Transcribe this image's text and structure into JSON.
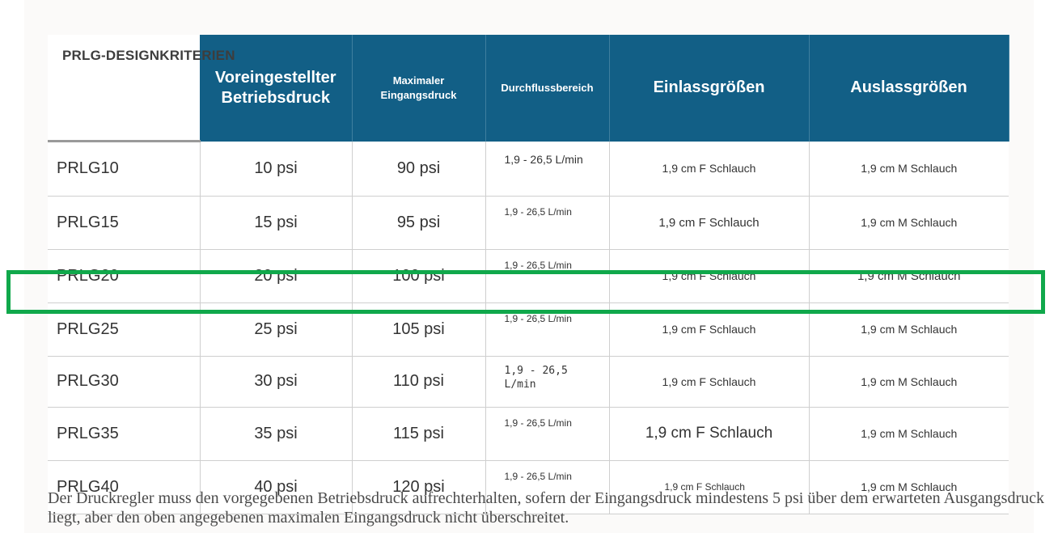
{
  "table": {
    "corner_label": "PRLG-DESIGNKRITERIEN",
    "headers": [
      {
        "text": "Voreingestellter Betriebsdruck",
        "line1": "Voreingestellter",
        "line2": "Betriebsdruck"
      },
      {
        "text": "Maximaler Eingangsdruck",
        "line1": "Maximaler",
        "line2": "Eingangsdruck"
      },
      {
        "text": "Durchflussbereich"
      },
      {
        "text": "Einlassgrößen"
      },
      {
        "text": "Auslassgrößen"
      }
    ],
    "rows": [
      {
        "model": "PRLG10",
        "preset": "10 psi",
        "max_inlet": "90 psi",
        "flow": "1,9 - 26,5 L/min",
        "inlet": "1,9 cm F Schlauch",
        "outlet": "1,9 cm M Schlauch"
      },
      {
        "model": "PRLG15",
        "preset": "15 psi",
        "max_inlet": "95 psi",
        "flow": "1,9 - 26,5 L/min",
        "inlet": "1,9 cm F Schlauch",
        "outlet": "1,9 cm M Schlauch"
      },
      {
        "model": "PRLG20",
        "preset": "20 psi",
        "max_inlet": "100 psi",
        "flow": "1,9 - 26,5 L/min",
        "inlet": "1,9 cm F Schlauch",
        "outlet": "1,9 cm M Schlauch"
      },
      {
        "model": "PRLG25",
        "preset": "25 psi",
        "max_inlet": "105 psi",
        "flow": "1,9 - 26,5 L/min",
        "inlet": "1,9 cm F Schlauch",
        "outlet": "1,9 cm M Schlauch"
      },
      {
        "model": "PRLG30",
        "preset": "30 psi",
        "max_inlet": "110 psi",
        "flow": "1,9 - 26,5 L/min",
        "inlet": "1,9 cm F Schlauch",
        "outlet": "1,9 cm M Schlauch"
      },
      {
        "model": "PRLG35",
        "preset": "35 psi",
        "max_inlet": "115 psi",
        "flow": "1,9 - 26,5 L/min",
        "inlet": "1,9 cm F Schlauch",
        "outlet": "1,9 cm M Schlauch"
      },
      {
        "model": "PRLG40",
        "preset": "40 psi",
        "max_inlet": "120 psi",
        "flow": "1,9 - 26,5 L/min",
        "inlet": "1,9 cm F Schlauch",
        "outlet": "1,9 cm M Schlauch"
      }
    ],
    "highlighted_model": "PRLG25"
  },
  "footnote": "Der Druckregler muss den vorgegebenen Betriebsdruck aufrechterhalten, sofern der Eingangsdruck mindestens 5 psi über dem erwarteten Ausgangsdruck liegt, aber den oben angegebenen maximalen Eingangsdruck nicht überschreitet.",
  "colors": {
    "header_bg": "#125f86",
    "header_text": "#ffffff",
    "highlight_border": "#10a84b",
    "body_text": "#333333"
  }
}
